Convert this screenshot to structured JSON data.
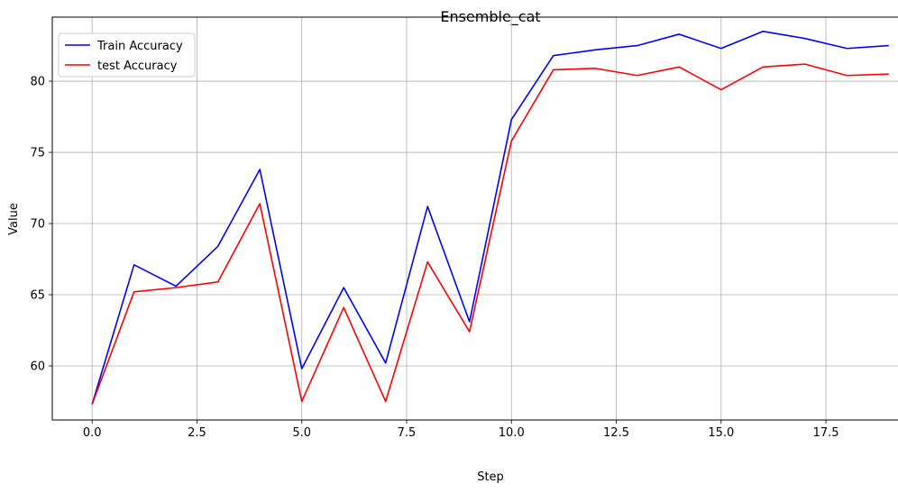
{
  "chart_data": {
    "type": "line",
    "title": "Ensemble_cat",
    "xlabel": "Step",
    "ylabel": "Value",
    "xlim": [
      -0.95,
      19.95
    ],
    "ylim": [
      56.2,
      84.5
    ],
    "xticks": [
      0.0,
      2.5,
      5.0,
      7.5,
      10.0,
      12.5,
      15.0,
      17.5
    ],
    "xtick_labels": [
      "0.0",
      "2.5",
      "5.0",
      "7.5",
      "10.0",
      "12.5",
      "15.0",
      "17.5"
    ],
    "yticks": [
      60,
      65,
      70,
      75,
      80
    ],
    "ytick_labels": [
      "60",
      "65",
      "70",
      "75",
      "80"
    ],
    "grid": true,
    "legend_position": "top-left",
    "x": [
      0,
      1,
      2,
      3,
      4,
      5,
      6,
      7,
      8,
      9,
      10,
      11,
      12,
      13,
      14,
      15,
      16,
      17,
      18,
      19
    ],
    "series": [
      {
        "name": "Train Accuracy",
        "color": "#0000ff",
        "values": [
          57.3,
          67.1,
          65.6,
          68.4,
          73.8,
          59.8,
          65.5,
          60.2,
          71.2,
          63.1,
          77.3,
          81.8,
          82.2,
          82.5,
          83.3,
          82.3,
          83.5,
          83.0,
          82.3,
          82.5
        ]
      },
      {
        "name": "test Accuracy",
        "color": "#ff0000",
        "values": [
          57.3,
          65.2,
          65.5,
          65.9,
          71.4,
          57.5,
          64.1,
          57.5,
          67.3,
          62.4,
          75.8,
          80.8,
          80.9,
          80.4,
          81.0,
          79.4,
          81.0,
          81.2,
          80.4,
          80.5
        ]
      }
    ]
  }
}
